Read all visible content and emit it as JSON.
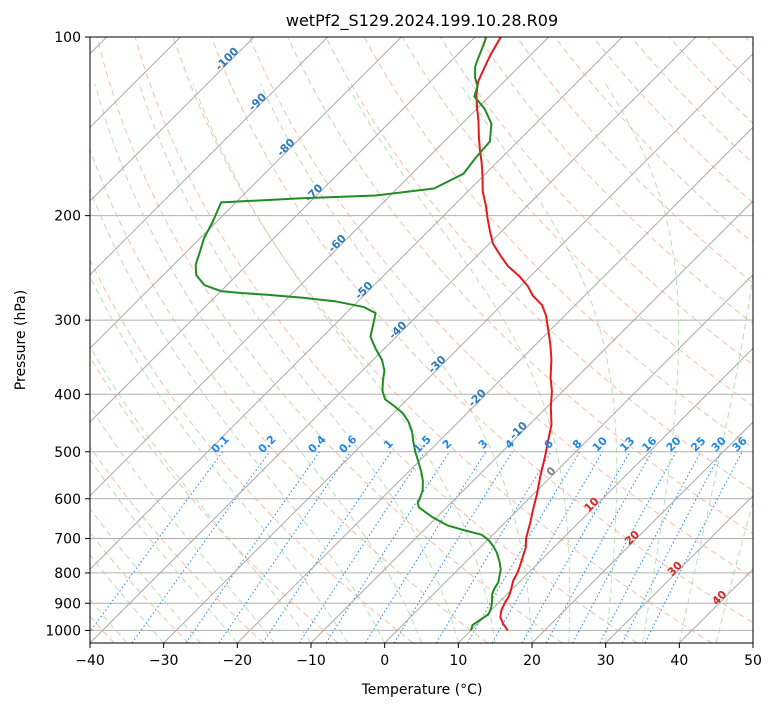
{
  "chart_data": {
    "type": "line",
    "subtype": "skew-t log-p diagram",
    "title": "wetPf2_S129.2024.199.10.28.R09",
    "xlabel": "Temperature (°C)",
    "ylabel": "Pressure (hPa)",
    "xlim": [
      -40,
      50
    ],
    "ylim": [
      1050,
      100
    ],
    "y_scale": "log",
    "x_ticks": [
      "−40",
      "−30",
      "−20",
      "−10",
      "0",
      "10",
      "20",
      "30",
      "40",
      "50"
    ],
    "x_tick_values": [
      -40,
      -30,
      -20,
      -10,
      0,
      10,
      20,
      30,
      40,
      50
    ],
    "y_ticks": [
      "100",
      "200",
      "300",
      "400",
      "500",
      "600",
      "700",
      "800",
      "900",
      "1000"
    ],
    "y_tick_values": [
      100,
      200,
      300,
      400,
      500,
      600,
      700,
      800,
      900,
      1000
    ],
    "grid": true,
    "colors": {
      "temperature": "#e41a1c",
      "dewpoint": "#228b22",
      "isotherm": "#aaaaaa",
      "dry_adiabat": "#f4a582",
      "moist_adiabat": "#a6d8a6",
      "mixing_ratio": "#1e88e5",
      "theta_label": "#2c7bb6",
      "isotherm_label_red": "#d62728",
      "isotherm_label_grey": "#808080"
    },
    "series": [
      {
        "name": "",
        "role": "temperature",
        "points": [
          [
            15.0,
            1000
          ],
          [
            13.5,
            975
          ],
          [
            12.2,
            950
          ],
          [
            11.4,
            925
          ],
          [
            10.9,
            900
          ],
          [
            10.5,
            875
          ],
          [
            9.8,
            850
          ],
          [
            9.0,
            825
          ],
          [
            8.5,
            800
          ],
          [
            7.8,
            775
          ],
          [
            7.0,
            750
          ],
          [
            6.2,
            725
          ],
          [
            5.0,
            700
          ],
          [
            3.5,
            660
          ],
          [
            2.0,
            625
          ],
          [
            0.5,
            590
          ],
          [
            -1.5,
            550
          ],
          [
            -3.5,
            510
          ],
          [
            -5.5,
            475
          ],
          [
            -7.0,
            450
          ],
          [
            -9.5,
            420
          ],
          [
            -11.5,
            395
          ],
          [
            -13.5,
            375
          ],
          [
            -15.8,
            350
          ],
          [
            -18.0,
            330
          ],
          [
            -20.5,
            310
          ],
          [
            -22.5,
            295
          ],
          [
            -24.5,
            283
          ],
          [
            -27.0,
            273
          ],
          [
            -29.0,
            263
          ],
          [
            -31.5,
            253
          ],
          [
            -34.5,
            243
          ],
          [
            -37.0,
            233
          ],
          [
            -39.5,
            223
          ],
          [
            -41.5,
            213
          ],
          [
            -43.5,
            203
          ],
          [
            -45.5,
            193
          ],
          [
            -48.0,
            182
          ],
          [
            -50.0,
            172
          ],
          [
            -52.0,
            163
          ],
          [
            -54.0,
            155
          ],
          [
            -56.0,
            147
          ],
          [
            -58.0,
            139
          ],
          [
            -60.0,
            132
          ],
          [
            -62.0,
            125
          ],
          [
            -63.5,
            119
          ],
          [
            -64.5,
            113
          ],
          [
            -65.5,
            107
          ],
          [
            -66.5,
            100
          ]
        ]
      },
      {
        "name": "",
        "role": "dewpoint",
        "points": [
          [
            10.0,
            1000
          ],
          [
            9.5,
            980
          ],
          [
            9.8,
            960
          ],
          [
            10.2,
            940
          ],
          [
            9.8,
            920
          ],
          [
            9.0,
            895
          ],
          [
            8.0,
            870
          ],
          [
            7.5,
            850
          ],
          [
            7.2,
            830
          ],
          [
            6.5,
            810
          ],
          [
            5.8,
            790
          ],
          [
            4.5,
            765
          ],
          [
            3.0,
            740
          ],
          [
            1.5,
            720
          ],
          [
            0.2,
            705
          ],
          [
            -1.5,
            690
          ],
          [
            -4.5,
            678
          ],
          [
            -7.5,
            665
          ],
          [
            -10.5,
            645
          ],
          [
            -12.5,
            630
          ],
          [
            -13.8,
            620
          ],
          [
            -14.5,
            610
          ],
          [
            -15.0,
            595
          ],
          [
            -15.6,
            580
          ],
          [
            -16.8,
            560
          ],
          [
            -18.3,
            540
          ],
          [
            -20.0,
            520
          ],
          [
            -21.8,
            500
          ],
          [
            -23.5,
            480
          ],
          [
            -25.0,
            462
          ],
          [
            -26.8,
            445
          ],
          [
            -28.8,
            430
          ],
          [
            -31.0,
            418
          ],
          [
            -33.0,
            408
          ],
          [
            -34.5,
            395
          ],
          [
            -35.8,
            380
          ],
          [
            -37.0,
            365
          ],
          [
            -38.8,
            350
          ],
          [
            -41.2,
            335
          ],
          [
            -43.5,
            320
          ],
          [
            -44.8,
            305
          ],
          [
            -46.0,
            292
          ],
          [
            -48.5,
            285
          ],
          [
            -53.0,
            279
          ],
          [
            -58.0,
            275
          ],
          [
            -63.0,
            272
          ],
          [
            -67.0,
            270
          ],
          [
            -70.0,
            268
          ],
          [
            -73.0,
            262
          ],
          [
            -75.5,
            252
          ],
          [
            -77.0,
            242
          ],
          [
            -78.2,
            230
          ],
          [
            -79.5,
            218
          ],
          [
            -80.5,
            205
          ],
          [
            -81.5,
            195
          ],
          [
            -82.0,
            190
          ],
          [
            -72.0,
            187
          ],
          [
            -62.0,
            185
          ],
          [
            -55.0,
            180
          ],
          [
            -53.0,
            170
          ],
          [
            -53.5,
            160
          ],
          [
            -53.8,
            150
          ],
          [
            -56.0,
            140
          ],
          [
            -59.0,
            132
          ],
          [
            -62.0,
            126
          ],
          [
            -63.0,
            121
          ],
          [
            -64.5,
            117
          ],
          [
            -66.0,
            112
          ],
          [
            -67.0,
            107
          ],
          [
            -68.0,
            102
          ],
          [
            -68.5,
            100
          ]
        ]
      }
    ],
    "dry_adiabat_labels": [
      {
        "text": "-100",
        "temp": -100,
        "pressure": 110
      },
      {
        "text": "-90",
        "temp": -90,
        "pressure": 130
      },
      {
        "text": "-80",
        "temp": -80,
        "pressure": 155
      },
      {
        "text": "-70",
        "temp": -70,
        "pressure": 185
      },
      {
        "text": "-60",
        "temp": -60,
        "pressure": 225
      },
      {
        "text": "-50",
        "temp": -50,
        "pressure": 270
      },
      {
        "text": "-40",
        "temp": -40,
        "pressure": 315
      },
      {
        "text": "-30",
        "temp": -30,
        "pressure": 360
      },
      {
        "text": "-20",
        "temp": -20,
        "pressure": 410
      },
      {
        "text": "-10",
        "temp": -10,
        "pressure": 465
      }
    ],
    "mixing_ratio_labels": [
      "0.1",
      "0.2",
      "0.4",
      "0.6",
      "1",
      "1.5",
      "2",
      "3",
      "4",
      "6",
      "8",
      "10",
      "13",
      "16",
      "20",
      "25",
      "30",
      "36"
    ],
    "mixing_ratio_values": [
      0.1,
      0.2,
      0.4,
      0.6,
      1,
      1.5,
      2,
      3,
      4,
      6,
      8,
      10,
      13,
      16,
      20,
      25,
      30,
      36
    ],
    "isotherm_labels": [
      {
        "text": "0",
        "temp": 0,
        "pressure": 545,
        "color": "grey"
      },
      {
        "text": "10",
        "temp": 10,
        "pressure": 620,
        "color": "red"
      },
      {
        "text": "20",
        "temp": 20,
        "pressure": 705,
        "color": "red"
      },
      {
        "text": "30",
        "temp": 30,
        "pressure": 795,
        "color": "red"
      },
      {
        "text": "40",
        "temp": 40,
        "pressure": 890,
        "color": "red"
      }
    ]
  }
}
